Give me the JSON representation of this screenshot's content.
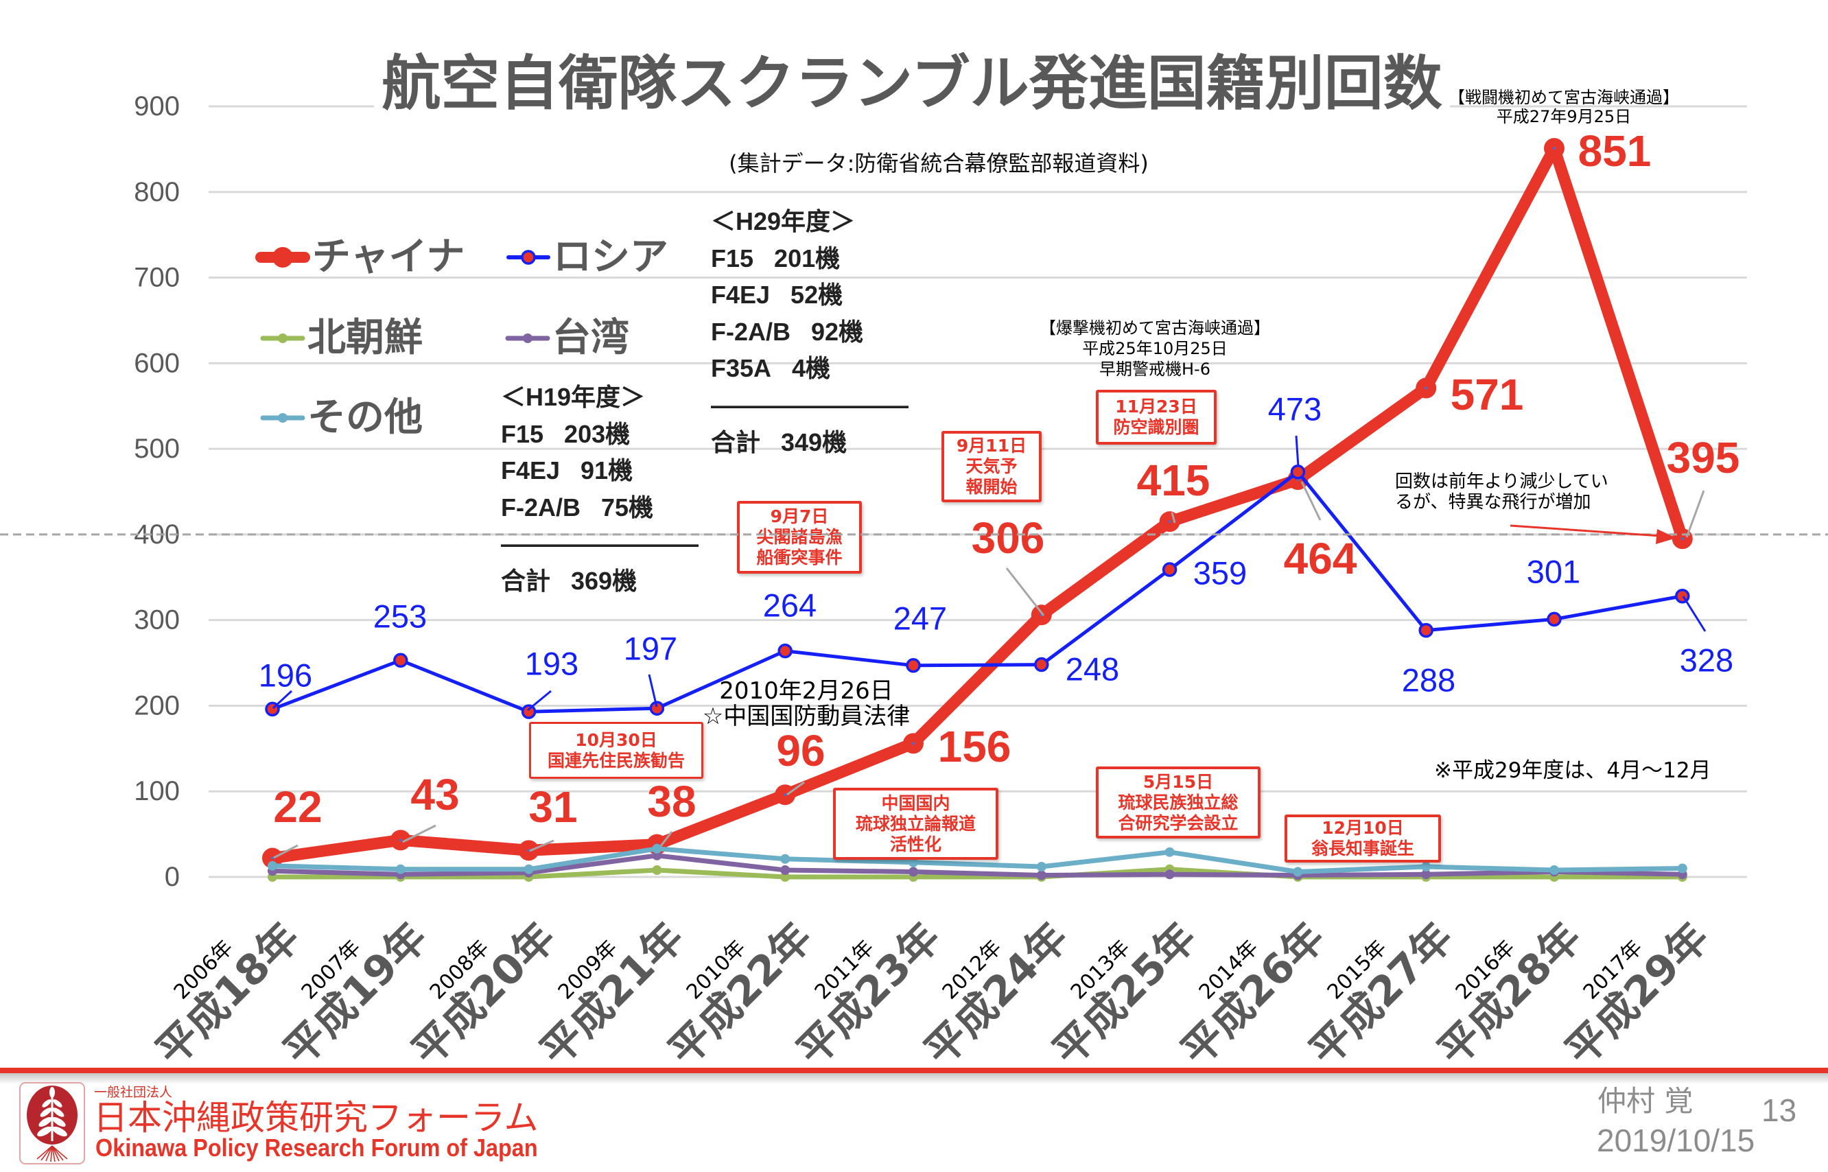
{
  "chart_data": {
    "type": "line",
    "title": "航空自衛隊スクランブル発進国籍別回数",
    "subtitle": "(集計データ:防衛省統合幕僚監部報道資料)",
    "xlabel": "",
    "ylabel": "",
    "ylim": [
      0,
      900
    ],
    "yticks": [
      0,
      100,
      200,
      300,
      400,
      500,
      600,
      700,
      800,
      900
    ],
    "grid": true,
    "legend_position": "top-left",
    "reference_line": {
      "y": 400,
      "style": "dashed"
    },
    "categories": [
      {
        "western": "2006年",
        "era": "平成18年"
      },
      {
        "western": "2007年",
        "era": "平成19年"
      },
      {
        "western": "2008年",
        "era": "平成20年"
      },
      {
        "western": "2009年",
        "era": "平成21年"
      },
      {
        "western": "2010年",
        "era": "平成22年"
      },
      {
        "western": "2011年",
        "era": "平成23年"
      },
      {
        "western": "2012年",
        "era": "平成24年"
      },
      {
        "western": "2013年",
        "era": "平成25年"
      },
      {
        "western": "2014年",
        "era": "平成26年"
      },
      {
        "western": "2015年",
        "era": "平成27年"
      },
      {
        "western": "2016年",
        "era": "平成28年"
      },
      {
        "western": "2017年",
        "era": "平成29年"
      }
    ],
    "series": [
      {
        "key": "china",
        "name": "チャイナ",
        "color": "#e8352a",
        "data_labels": true,
        "values": [
          22,
          43,
          31,
          38,
          96,
          156,
          306,
          415,
          464,
          571,
          851,
          395
        ]
      },
      {
        "key": "russia",
        "name": "ロシア",
        "color": "#1420f5",
        "marker_fill": "#e8352a",
        "data_labels": true,
        "values": [
          196,
          253,
          193,
          197,
          264,
          247,
          248,
          359,
          473,
          288,
          301,
          328
        ]
      },
      {
        "key": "north-korea",
        "name": "北朝鮮",
        "color": "#9bbb59",
        "data_labels": false,
        "values": [
          0,
          0,
          0,
          8,
          0,
          0,
          0,
          9,
          0,
          0,
          0,
          0
        ]
      },
      {
        "key": "taiwan",
        "name": "台湾",
        "color": "#8064a2",
        "data_labels": false,
        "values": [
          7,
          3,
          5,
          25,
          8,
          6,
          2,
          3,
          2,
          3,
          6,
          3
        ]
      },
      {
        "key": "other",
        "name": "その他",
        "color": "#6aaec8",
        "data_labels": false,
        "values": [
          13,
          9,
          9,
          33,
          21,
          17,
          12,
          29,
          6,
          12,
          8,
          10
        ]
      }
    ]
  },
  "aircraft_breakdown": {
    "fy_h19": {
      "heading": "＜H19年度＞",
      "rows": [
        {
          "model": "F15",
          "count": "203機"
        },
        {
          "model": "F4EJ",
          "count": "91機"
        },
        {
          "model": "F-2A/B",
          "count": "75機"
        }
      ],
      "separator": "————————",
      "total_label": "合計",
      "total_count": "369機"
    },
    "fy_h29": {
      "heading": "＜H29年度＞",
      "rows": [
        {
          "model": "F15",
          "count": "201機"
        },
        {
          "model": "F4EJ",
          "count": "52機"
        },
        {
          "model": "F-2A/B",
          "count": "92機"
        },
        {
          "model": "F35A",
          "count": "4機"
        }
      ],
      "separator": "————————",
      "total_label": "合計",
      "total_count": "349機"
    }
  },
  "annotations": {
    "fighter_transit": [
      "【戦闘機初めて宮古海峡通過】",
      "平成27年9月25日"
    ],
    "bomber_transit": [
      "【爆撃機初めて宮古海峡通過】",
      "平成25年10月25日",
      "早期警戒機H-6"
    ],
    "defense_mobilization_law": [
      "2010年2月26日",
      "☆中国国防動員法律"
    ],
    "decrease_note": [
      "回数は前年より減少してい",
      "るが、特異な飛行が増加"
    ],
    "fy29_note": "※平成29年度は、4月～12月",
    "event_boxes": [
      [
        "9月7日",
        "尖閣諸島漁",
        "船衝突事件"
      ],
      [
        "9月11日",
        "天気予",
        "報開始"
      ],
      [
        "11月23日",
        "防空識別圏"
      ],
      [
        "10月30日",
        "国連先住民族勧告"
      ],
      [
        "中国国内",
        "琉球独立論報道",
        "活性化"
      ],
      [
        "5月15日",
        "琉球民族独立総",
        "合研究学会設立"
      ],
      [
        "12月10日",
        "翁長知事誕生"
      ]
    ]
  },
  "footer": {
    "org_prefix": "一般社団法人",
    "org_name_ja": "日本沖縄政策研究フォーラム",
    "org_name_en": "Okinawa Policy Research Forum of Japan",
    "author": "仲村 覚",
    "date": "2019/10/15",
    "page_number": "13",
    "brand_color": "#e8352a"
  }
}
